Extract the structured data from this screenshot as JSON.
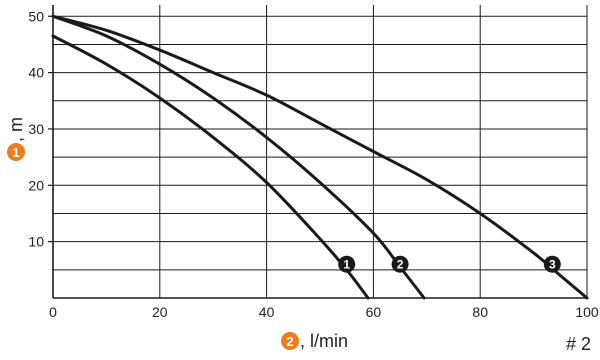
{
  "chart_data": {
    "type": "line",
    "xlabel": ", l/min",
    "ylabel": ", m",
    "xlabel_marker": "2",
    "ylabel_marker": "1",
    "xlim": [
      0,
      100
    ],
    "ylim": [
      0,
      52
    ],
    "xticks": [
      0,
      20,
      40,
      60,
      80,
      100
    ],
    "yticks": [
      10,
      20,
      30,
      40,
      50
    ],
    "minor_yticks": [
      5,
      15,
      25,
      35,
      45
    ],
    "grid": true,
    "accent_color": "#f07d1a",
    "line_color": "#1a1a1a",
    "series": [
      {
        "marker": "1",
        "marker_at": [
          55,
          6
        ],
        "x": [
          0,
          10,
          20,
          30,
          40,
          50,
          55,
          59
        ],
        "y": [
          46.5,
          41.5,
          35.5,
          28.5,
          20.5,
          10.5,
          5,
          0
        ]
      },
      {
        "marker": "2",
        "marker_at": [
          65,
          6
        ],
        "x": [
          0,
          10,
          20,
          30,
          40,
          50,
          60,
          65,
          69.5
        ],
        "y": [
          50,
          46.5,
          41.5,
          35.5,
          28.5,
          20.5,
          11.5,
          5.5,
          0
        ]
      },
      {
        "marker": "3",
        "marker_at": [
          93.5,
          6
        ],
        "x": [
          0,
          10,
          20,
          30,
          40,
          50,
          60,
          70,
          80,
          90,
          95,
          100
        ],
        "y": [
          50,
          47.5,
          44,
          40,
          36,
          31,
          26,
          21,
          15,
          8,
          4,
          0
        ]
      }
    ]
  },
  "figure_number": "# 2"
}
